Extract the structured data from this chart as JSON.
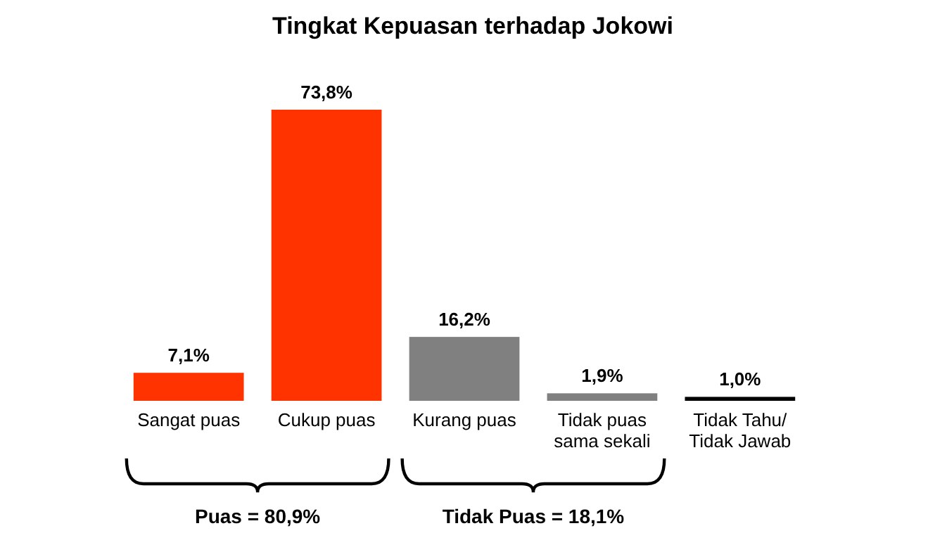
{
  "chart_data": {
    "type": "bar",
    "title": "Tingkat Kepuasan terhadap Jokowi",
    "categories": [
      "Sangat puas",
      "Cukup puas",
      "Kurang puas",
      "Tidak puas sama sekali",
      "Tidak Tahu/ Tidak Jawab"
    ],
    "values": [
      7.1,
      73.8,
      16.2,
      1.9,
      1.0
    ],
    "colors": [
      "#ff3300",
      "#ff3300",
      "#808080",
      "#808080",
      "#000000"
    ],
    "value_labels": [
      "7,1%",
      "73,8%",
      "16,2%",
      "1,9%",
      "1,0%"
    ],
    "annotations": [
      "Puas = 80,9%",
      "Tidak Puas = 18,1%"
    ]
  }
}
